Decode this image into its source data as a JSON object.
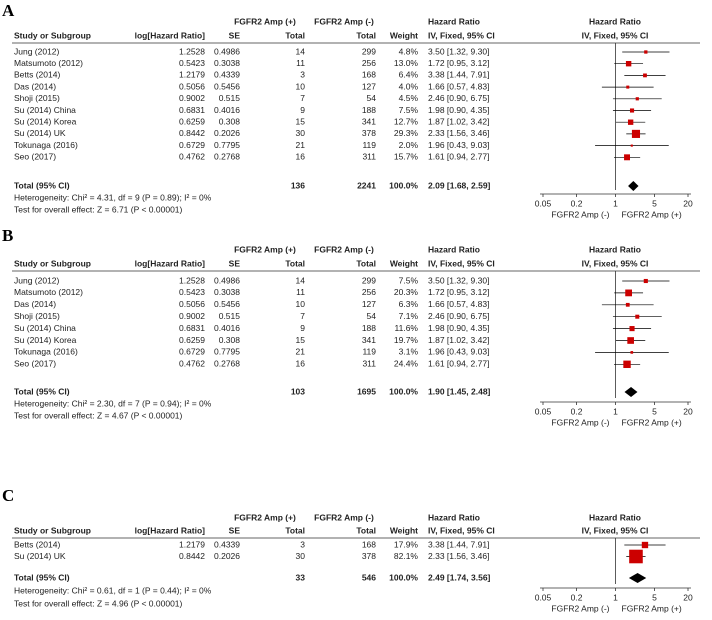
{
  "chart_data": [
    {
      "type": "forest",
      "panel": "A",
      "group_headers": [
        "FGFR2 Amp (+)",
        "FGFR2 Amp (-)",
        "Hazard Ratio",
        "Hazard Ratio"
      ],
      "column_headers": [
        "Study or Subgroup",
        "log[Hazard Ratio]",
        "SE",
        "Total",
        "Total",
        "Weight",
        "IV, Fixed, 95% CI",
        "IV, Fixed, 95% CI"
      ],
      "rows": [
        {
          "study": "Jung (2012)",
          "loghr": 1.2528,
          "se": 0.4986,
          "exp_total": 14,
          "ctrl_total": 299,
          "weight": 4.8,
          "weight_label": "4.8%",
          "hr": 3.5,
          "ci_lower": 1.32,
          "ci_upper": 9.3,
          "ci_label": "3.50 [1.32, 9.30]"
        },
        {
          "study": "Matsumoto (2012)",
          "loghr": 0.5423,
          "se": 0.3038,
          "exp_total": 11,
          "ctrl_total": 256,
          "weight": 13.0,
          "weight_label": "13.0%",
          "hr": 1.72,
          "ci_lower": 0.95,
          "ci_upper": 3.12,
          "ci_label": "1.72 [0.95, 3.12]"
        },
        {
          "study": "Betts (2014)",
          "loghr": 1.2179,
          "se": 0.4339,
          "exp_total": 3,
          "ctrl_total": 168,
          "weight": 6.4,
          "weight_label": "6.4%",
          "hr": 3.38,
          "ci_lower": 1.44,
          "ci_upper": 7.91,
          "ci_label": "3.38 [1.44, 7.91]"
        },
        {
          "study": "Das (2014)",
          "loghr": 0.5056,
          "se": 0.5456,
          "exp_total": 10,
          "ctrl_total": 127,
          "weight": 4.0,
          "weight_label": "4.0%",
          "hr": 1.66,
          "ci_lower": 0.57,
          "ci_upper": 4.83,
          "ci_label": "1.66 [0.57, 4.83]"
        },
        {
          "study": "Shoji (2015)",
          "loghr": 0.9002,
          "se": 0.515,
          "exp_total": 7,
          "ctrl_total": 54,
          "weight": 4.5,
          "weight_label": "4.5%",
          "hr": 2.46,
          "ci_lower": 0.9,
          "ci_upper": 6.75,
          "ci_label": "2.46 [0.90, 6.75]"
        },
        {
          "study": "Su (2014) China",
          "loghr": 0.6831,
          "se": 0.4016,
          "exp_total": 9,
          "ctrl_total": 188,
          "weight": 7.5,
          "weight_label": "7.5%",
          "hr": 1.98,
          "ci_lower": 0.9,
          "ci_upper": 4.35,
          "ci_label": "1.98 [0.90, 4.35]"
        },
        {
          "study": "Su (2014) Korea",
          "loghr": 0.6259,
          "se": 0.308,
          "exp_total": 15,
          "ctrl_total": 341,
          "weight": 12.7,
          "weight_label": "12.7%",
          "hr": 1.87,
          "ci_lower": 1.02,
          "ci_upper": 3.42,
          "ci_label": "1.87 [1.02, 3.42]"
        },
        {
          "study": "Su (2014) UK",
          "loghr": 0.8442,
          "se": 0.2026,
          "exp_total": 30,
          "ctrl_total": 378,
          "weight": 29.3,
          "weight_label": "29.3%",
          "hr": 2.33,
          "ci_lower": 1.56,
          "ci_upper": 3.46,
          "ci_label": "2.33 [1.56, 3.46]"
        },
        {
          "study": "Tokunaga (2016)",
          "loghr": 0.6729,
          "se": 0.7795,
          "exp_total": 21,
          "ctrl_total": 119,
          "weight": 2.0,
          "weight_label": "2.0%",
          "hr": 1.96,
          "ci_lower": 0.43,
          "ci_upper": 9.03,
          "ci_label": "1.96 [0.43, 9.03]"
        },
        {
          "study": "Seo (2017)",
          "loghr": 0.4762,
          "se": 0.2768,
          "exp_total": 16,
          "ctrl_total": 311,
          "weight": 15.7,
          "weight_label": "15.7%",
          "hr": 1.61,
          "ci_lower": 0.94,
          "ci_upper": 2.77,
          "ci_label": "1.61 [0.94, 2.77]"
        }
      ],
      "total": {
        "study": "Total (95% CI)",
        "exp_total": 136,
        "ctrl_total": 2241,
        "weight": 100.0,
        "weight_label": "100.0%",
        "hr": 2.09,
        "ci_lower": 1.68,
        "ci_upper": 2.59,
        "ci_label": "2.09 [1.68, 2.59]"
      },
      "heterogeneity": "Heterogeneity: Chi² = 4.31, df = 9 (P = 0.89); I² = 0%",
      "overall_effect": "Test for overall effect: Z = 6.71 (P < 0.00001)",
      "xscale": "log",
      "xlim": [
        0.05,
        20
      ],
      "xticks": [
        0.05,
        0.2,
        1,
        5,
        20
      ],
      "xlabel_left": "FGFR2 Amp (-)",
      "xlabel_right": "FGFR2 Amp (+)",
      "color": "#cc0000"
    },
    {
      "type": "forest",
      "panel": "B",
      "group_headers": [
        "FGFR2 Amp (+)",
        "FGFR2 Amp (-)",
        "Hazard Ratio",
        "Hazard Ratio"
      ],
      "column_headers": [
        "Study or Subgroup",
        "log[Hazard Ratio]",
        "SE",
        "Total",
        "Total",
        "Weight",
        "IV, Fixed, 95% CI",
        "IV, Fixed, 95% CI"
      ],
      "rows": [
        {
          "study": "Jung (2012)",
          "loghr": 1.2528,
          "se": 0.4986,
          "exp_total": 14,
          "ctrl_total": 299,
          "weight": 7.5,
          "weight_label": "7.5%",
          "hr": 3.5,
          "ci_lower": 1.32,
          "ci_upper": 9.3,
          "ci_label": "3.50 [1.32, 9.30]"
        },
        {
          "study": "Matsumoto (2012)",
          "loghr": 0.5423,
          "se": 0.3038,
          "exp_total": 11,
          "ctrl_total": 256,
          "weight": 20.3,
          "weight_label": "20.3%",
          "hr": 1.72,
          "ci_lower": 0.95,
          "ci_upper": 3.12,
          "ci_label": "1.72 [0.95, 3.12]"
        },
        {
          "study": "Das (2014)",
          "loghr": 0.5056,
          "se": 0.5456,
          "exp_total": 10,
          "ctrl_total": 127,
          "weight": 6.3,
          "weight_label": "6.3%",
          "hr": 1.66,
          "ci_lower": 0.57,
          "ci_upper": 4.83,
          "ci_label": "1.66 [0.57, 4.83]"
        },
        {
          "study": "Shoji (2015)",
          "loghr": 0.9002,
          "se": 0.515,
          "exp_total": 7,
          "ctrl_total": 54,
          "weight": 7.1,
          "weight_label": "7.1%",
          "hr": 2.46,
          "ci_lower": 0.9,
          "ci_upper": 6.75,
          "ci_label": "2.46 [0.90, 6.75]"
        },
        {
          "study": "Su (2014) China",
          "loghr": 0.6831,
          "se": 0.4016,
          "exp_total": 9,
          "ctrl_total": 188,
          "weight": 11.6,
          "weight_label": "11.6%",
          "hr": 1.98,
          "ci_lower": 0.9,
          "ci_upper": 4.35,
          "ci_label": "1.98 [0.90, 4.35]"
        },
        {
          "study": "Su (2014) Korea",
          "loghr": 0.6259,
          "se": 0.308,
          "exp_total": 15,
          "ctrl_total": 341,
          "weight": 19.7,
          "weight_label": "19.7%",
          "hr": 1.87,
          "ci_lower": 1.02,
          "ci_upper": 3.42,
          "ci_label": "1.87 [1.02, 3.42]"
        },
        {
          "study": "Tokunaga (2016)",
          "loghr": 0.6729,
          "se": 0.7795,
          "exp_total": 21,
          "ctrl_total": 119,
          "weight": 3.1,
          "weight_label": "3.1%",
          "hr": 1.96,
          "ci_lower": 0.43,
          "ci_upper": 9.03,
          "ci_label": "1.96 [0.43, 9.03]"
        },
        {
          "study": "Seo (2017)",
          "loghr": 0.4762,
          "se": 0.2768,
          "exp_total": 16,
          "ctrl_total": 311,
          "weight": 24.4,
          "weight_label": "24.4%",
          "hr": 1.61,
          "ci_lower": 0.94,
          "ci_upper": 2.77,
          "ci_label": "1.61 [0.94, 2.77]"
        }
      ],
      "total": {
        "study": "Total (95% CI)",
        "exp_total": 103,
        "ctrl_total": 1695,
        "weight": 100.0,
        "weight_label": "100.0%",
        "hr": 1.9,
        "ci_lower": 1.45,
        "ci_upper": 2.48,
        "ci_label": "1.90 [1.45, 2.48]"
      },
      "heterogeneity": "Heterogeneity: Chi² = 2.30, df = 7 (P = 0.94); I² = 0%",
      "overall_effect": "Test for overall effect: Z = 4.67 (P < 0.00001)",
      "xscale": "log",
      "xlim": [
        0.05,
        20
      ],
      "xticks": [
        0.05,
        0.2,
        1,
        5,
        20
      ],
      "xlabel_left": "FGFR2 Amp (-)",
      "xlabel_right": "FGFR2 Amp (+)",
      "color": "#cc0000"
    },
    {
      "type": "forest",
      "panel": "C",
      "group_headers": [
        "FGFR2 Amp (+)",
        "FGFR2 Amp (-)",
        "Hazard Ratio",
        "Hazard Ratio"
      ],
      "column_headers": [
        "Study or Subgroup",
        "log[Hazard Ratio]",
        "SE",
        "Total",
        "Total",
        "Weight",
        "IV, Fixed, 95% CI",
        "IV, Fixed, 95% CI"
      ],
      "rows": [
        {
          "study": "Betts (2014)",
          "loghr": 1.2179,
          "se": 0.4339,
          "exp_total": 3,
          "ctrl_total": 168,
          "weight": 17.9,
          "weight_label": "17.9%",
          "hr": 3.38,
          "ci_lower": 1.44,
          "ci_upper": 7.91,
          "ci_label": "3.38 [1.44, 7.91]"
        },
        {
          "study": "Su (2014) UK",
          "loghr": 0.8442,
          "se": 0.2026,
          "exp_total": 30,
          "ctrl_total": 378,
          "weight": 82.1,
          "weight_label": "82.1%",
          "hr": 2.33,
          "ci_lower": 1.56,
          "ci_upper": 3.46,
          "ci_label": "2.33 [1.56, 3.46]"
        }
      ],
      "total": {
        "study": "Total (95% CI)",
        "exp_total": 33,
        "ctrl_total": 546,
        "weight": 100.0,
        "weight_label": "100.0%",
        "hr": 2.49,
        "ci_lower": 1.74,
        "ci_upper": 3.56,
        "ci_label": "2.49 [1.74, 3.56]"
      },
      "heterogeneity": "Heterogeneity: Chi² = 0.61, df = 1 (P = 0.44); I² = 0%",
      "overall_effect": "Test for overall effect: Z = 4.96 (P < 0.00001)",
      "xscale": "log",
      "xlim": [
        0.05,
        20
      ],
      "xticks": [
        0.05,
        0.2,
        1,
        5,
        20
      ],
      "xlabel_left": "FGFR2 Amp (-)",
      "xlabel_right": "FGFR2 Amp (+)",
      "color": "#cc0000"
    }
  ]
}
